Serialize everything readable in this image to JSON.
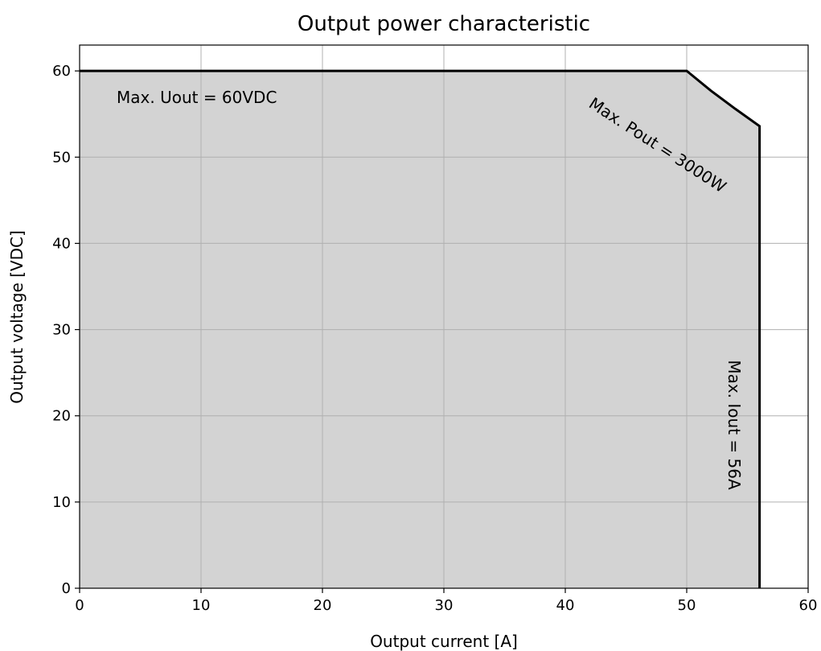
{
  "chart_data": {
    "type": "area",
    "title": "Output power characteristic",
    "xlabel": "Output current [A]",
    "ylabel": "Output voltage [VDC]",
    "xlim": [
      0,
      60
    ],
    "ylim": [
      0,
      63
    ],
    "xticks": [
      0,
      10,
      20,
      30,
      40,
      50,
      60
    ],
    "yticks": [
      0,
      10,
      20,
      30,
      40,
      50,
      60
    ],
    "grid": true,
    "fill_color": "#d3d3d3",
    "line_color": "#000000",
    "grid_color": "#b0b0b0",
    "boundary": [
      {
        "x": 0,
        "y": 60
      },
      {
        "x": 50,
        "y": 60
      },
      {
        "x": 52,
        "y": 57.7
      },
      {
        "x": 54,
        "y": 55.6
      },
      {
        "x": 56,
        "y": 53.6
      },
      {
        "x": 56,
        "y": 0
      }
    ],
    "annotations": [
      {
        "text": "Max. Uout = 60VDC"
      },
      {
        "text": "Max. Pout = 3000W"
      },
      {
        "text": "Max. Iout = 56A"
      }
    ]
  }
}
